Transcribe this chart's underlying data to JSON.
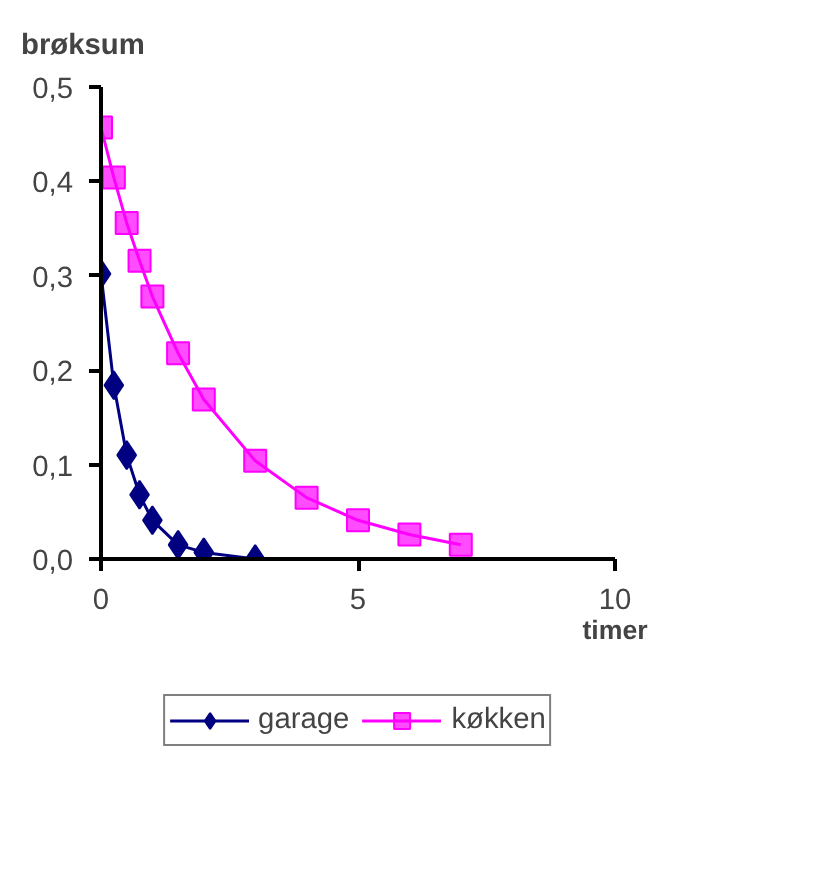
{
  "chart_data": {
    "type": "line",
    "title": "brøksum",
    "xlabel": "timer",
    "xlim": [
      0,
      10
    ],
    "xticks": [
      0,
      5,
      10
    ],
    "ylim": [
      0,
      0.5
    ],
    "yticks": [
      {
        "value": 0,
        "label": "0,0"
      },
      {
        "value": 0.1,
        "label": "0,1"
      },
      {
        "value": 0.2,
        "label": "0,2"
      },
      {
        "value": 0.3,
        "label": "0,3"
      },
      {
        "value": 0.4,
        "label": "0,4"
      },
      {
        "value": 0.5,
        "label": "0,5"
      }
    ],
    "grid": false,
    "legend": "bottom",
    "series": [
      {
        "name": "garage",
        "color": "#000080",
        "marker": "diamond",
        "x": [
          0,
          0.25,
          0.5,
          0.75,
          1,
          1.5,
          2,
          3
        ],
        "values": [
          0.302,
          0.184,
          0.11,
          0.068,
          0.041,
          0.015,
          0.007,
          0.0
        ]
      },
      {
        "name": "køkken",
        "color": "#ff00ff",
        "marker": "square",
        "x": [
          0,
          0.25,
          0.5,
          0.75,
          1,
          1.5,
          2,
          3,
          4,
          5,
          6,
          7
        ],
        "values": [
          0.457,
          0.404,
          0.356,
          0.316,
          0.278,
          0.218,
          0.169,
          0.104,
          0.065,
          0.041,
          0.026,
          0.015
        ]
      }
    ]
  }
}
